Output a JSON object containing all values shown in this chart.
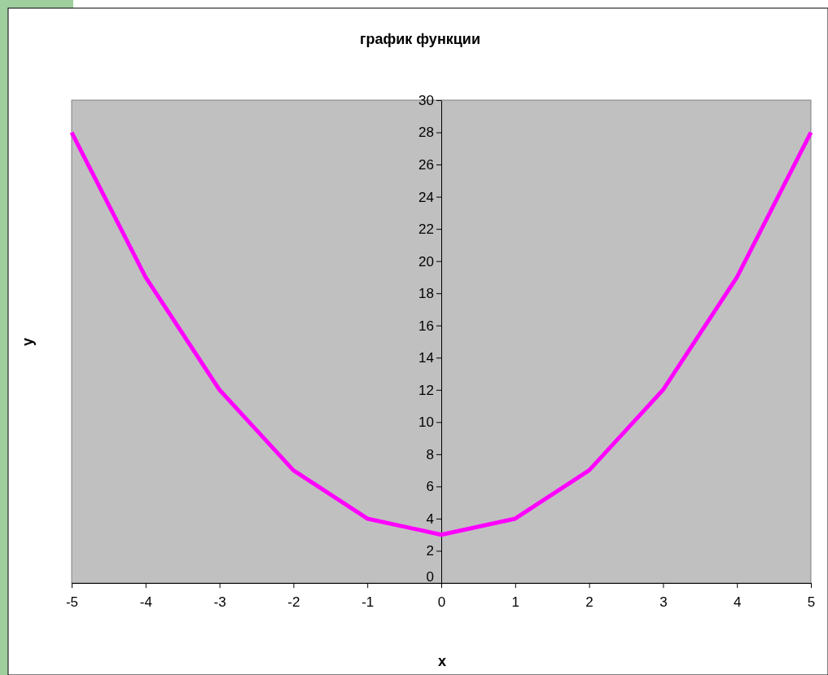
{
  "chart_data": {
    "type": "line",
    "title": "график функции",
    "xlabel": "x",
    "ylabel": "y",
    "x": [
      -5,
      -4,
      -3,
      -2,
      -1,
      0,
      1,
      2,
      3,
      4,
      5
    ],
    "series": [
      {
        "color": "#ff00ff",
        "values": [
          28,
          19,
          12,
          7,
          4,
          3,
          4,
          7,
          12,
          19,
          28
        ]
      }
    ],
    "xlim": [
      -5,
      5
    ],
    "xticks": [
      -5,
      -4,
      -3,
      -2,
      -1,
      0,
      1,
      2,
      3,
      4,
      5
    ],
    "ylim": [
      0,
      30
    ],
    "yticks": [
      0,
      2,
      4,
      6,
      8,
      10,
      12,
      14,
      16,
      18,
      20,
      22,
      24,
      26,
      28,
      30
    ],
    "grid": false,
    "marker": "none",
    "line_style": "solid"
  }
}
